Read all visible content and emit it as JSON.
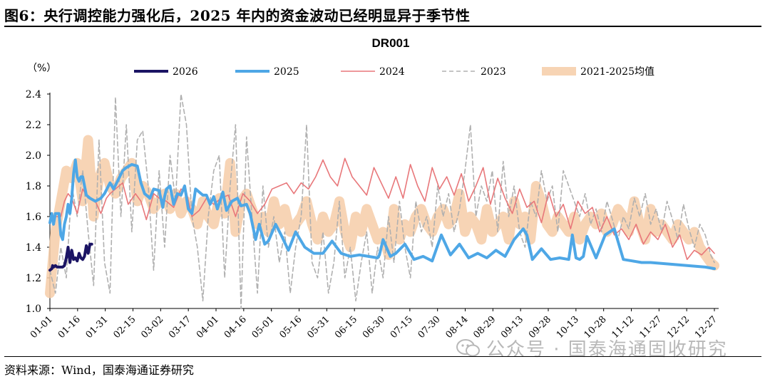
{
  "figure": {
    "title": "图6：央行调控能力强化后，2025 年内的资金波动已经明显异于季节性",
    "source": "资料来源：Wind，国泰海通证券研究",
    "watermark": "公众号 · 国泰海通固收研究"
  },
  "chart_data": {
    "type": "line",
    "title": "DR001",
    "ylabel": "（%）",
    "ylim": [
      1.0,
      2.4
    ],
    "yticks": [
      "1.0",
      "1.2",
      "1.4",
      "1.6",
      "1.8",
      "2.0",
      "2.2",
      "2.4"
    ],
    "x_categories": [
      "01-01",
      "01-16",
      "01-31",
      "02-15",
      "03-02",
      "03-17",
      "04-01",
      "04-16",
      "05-01",
      "05-16",
      "05-31",
      "06-15",
      "06-30",
      "07-15",
      "07-30",
      "08-14",
      "08-29",
      "09-13",
      "09-28",
      "10-13",
      "10-28",
      "11-12",
      "11-27",
      "12-12",
      "12-27"
    ],
    "legend_position": "top",
    "series": [
      {
        "name": "2026",
        "color": "#1b1464",
        "style": "solid-thick",
        "x": [
          0,
          1.1,
          1.5,
          2,
          3,
          4,
          5,
          7,
          8,
          9,
          10,
          11,
          12,
          13,
          14,
          15,
          16,
          17,
          18,
          19,
          20,
          21,
          22,
          23
        ],
        "values": [
          1.25,
          1.26,
          1.28,
          1.27,
          1.28,
          1.27,
          1.27,
          1.27,
          1.28,
          1.33,
          1.4,
          1.3,
          1.38,
          1.32,
          1.33,
          1.31,
          1.36,
          1.33,
          1.32,
          1.34,
          1.41,
          1.36,
          1.42,
          1.42
        ]
      },
      {
        "name": "2025",
        "color": "#4ea7e6",
        "style": "solid-thick",
        "x": [
          0,
          1,
          2,
          3,
          5,
          6,
          7,
          8,
          9,
          10,
          11,
          12,
          13,
          14,
          15,
          16,
          17,
          18,
          20,
          22,
          25,
          28,
          30,
          33,
          35,
          40,
          42,
          45,
          48,
          50,
          52,
          55,
          57,
          60,
          62,
          63,
          64,
          66,
          68,
          70,
          72,
          74,
          76,
          78,
          80,
          84,
          86,
          88,
          90,
          92,
          95,
          97,
          100,
          103,
          105,
          108,
          110,
          113,
          115,
          118,
          120,
          124,
          127,
          131,
          135,
          140,
          145,
          150,
          155,
          160,
          165,
          170,
          175,
          180,
          181,
          183,
          187,
          190,
          195,
          200,
          205,
          210,
          215,
          220,
          225,
          230,
          235,
          240,
          245,
          250,
          255,
          260,
          262,
          265,
          270,
          275,
          280,
          285,
          287,
          289,
          291,
          293,
          295,
          300,
          305,
          310,
          315,
          320,
          325,
          330,
          340,
          350,
          360,
          365
        ],
        "values": [
          1.56,
          1.62,
          1.55,
          1.62,
          1.62,
          1.48,
          1.45,
          1.55,
          1.6,
          1.68,
          1.62,
          1.72,
          1.88,
          1.97,
          1.86,
          1.83,
          1.86,
          1.86,
          1.74,
          1.72,
          1.7,
          1.72,
          1.75,
          1.82,
          1.78,
          1.9,
          1.92,
          1.94,
          1.93,
          1.82,
          1.75,
          1.72,
          1.78,
          1.77,
          1.66,
          1.73,
          1.78,
          1.8,
          1.68,
          1.75,
          1.74,
          1.8,
          1.65,
          1.62,
          1.78,
          1.74,
          1.74,
          1.68,
          1.73,
          1.65,
          1.76,
          1.64,
          1.7,
          1.72,
          1.67,
          1.68,
          1.62,
          1.45,
          1.55,
          1.42,
          1.44,
          1.55,
          1.48,
          1.38,
          1.5,
          1.4,
          1.36,
          1.36,
          1.44,
          1.36,
          1.34,
          1.35,
          1.34,
          1.33,
          1.35,
          1.45,
          1.34,
          1.36,
          1.42,
          1.32,
          1.34,
          1.31,
          1.48,
          1.35,
          1.42,
          1.33,
          1.36,
          1.33,
          1.38,
          1.34,
          1.45,
          1.52,
          1.48,
          1.32,
          1.39,
          1.32,
          1.33,
          1.32,
          1.48,
          1.33,
          1.32,
          1.34,
          1.47,
          1.33,
          1.48,
          1.52,
          1.32,
          1.31,
          1.3,
          1.3,
          1.29,
          1.28,
          1.27,
          1.26
        ]
      },
      {
        "name": "2024",
        "color": "#e8777a",
        "style": "solid",
        "x": [
          0,
          3,
          6,
          8,
          10,
          12,
          15,
          18,
          21,
          25,
          28,
          31,
          33,
          36,
          40,
          43,
          47,
          50,
          53,
          57,
          60,
          64,
          68,
          72,
          75,
          78,
          82,
          86,
          90,
          94,
          98,
          102,
          106,
          110,
          114,
          118,
          122,
          126,
          130,
          134,
          138,
          142,
          146,
          150,
          154,
          158,
          162,
          166,
          170,
          174,
          178,
          182,
          186,
          190,
          194,
          198,
          202,
          206,
          210,
          214,
          218,
          222,
          226,
          230,
          234,
          238,
          242,
          246,
          250,
          254,
          258,
          262,
          266,
          270,
          274,
          278,
          282,
          286,
          290,
          294,
          298,
          302,
          306,
          310,
          314,
          318,
          322,
          326,
          330,
          334,
          338,
          342,
          346,
          350,
          354,
          358,
          362,
          365
        ],
        "values": [
          1.58,
          1.6,
          1.6,
          1.7,
          1.75,
          1.72,
          1.62,
          1.78,
          1.72,
          1.7,
          1.62,
          1.72,
          1.75,
          1.78,
          1.82,
          1.68,
          1.75,
          1.7,
          1.58,
          1.75,
          1.72,
          1.7,
          1.66,
          1.78,
          1.76,
          1.6,
          1.64,
          1.72,
          1.68,
          1.72,
          1.74,
          1.6,
          1.75,
          1.7,
          1.62,
          1.68,
          1.78,
          1.8,
          1.82,
          1.75,
          1.82,
          1.78,
          1.86,
          1.97,
          1.86,
          1.8,
          1.98,
          1.86,
          1.8,
          1.74,
          1.92,
          1.82,
          1.72,
          1.86,
          1.72,
          1.94,
          1.8,
          1.7,
          1.92,
          1.78,
          1.86,
          1.74,
          1.88,
          1.7,
          1.8,
          1.92,
          1.68,
          1.85,
          1.72,
          1.62,
          1.78,
          1.66,
          1.7,
          1.56,
          1.76,
          1.6,
          1.68,
          1.52,
          1.7,
          1.62,
          1.66,
          1.5,
          1.6,
          1.48,
          1.52,
          1.45,
          1.55,
          1.42,
          1.5,
          1.45,
          1.55,
          1.4,
          1.48,
          1.32,
          1.38,
          1.35,
          1.4,
          1.36
        ]
      },
      {
        "name": "2023",
        "color": "#b0b0b0",
        "style": "dashed",
        "x": [
          0,
          3,
          6,
          9,
          12,
          15,
          18,
          21,
          24,
          27,
          30,
          33,
          36,
          39,
          42,
          45,
          48,
          51,
          54,
          57,
          60,
          63,
          66,
          69,
          72,
          75,
          78,
          81,
          84,
          87,
          90,
          93,
          96,
          99,
          102,
          105,
          108,
          111,
          114,
          117,
          120,
          123,
          126,
          129,
          132,
          135,
          138,
          141,
          144,
          147,
          150,
          153,
          156,
          159,
          162,
          165,
          168,
          171,
          174,
          177,
          180,
          183,
          186,
          189,
          192,
          195,
          198,
          201,
          204,
          207,
          210,
          213,
          216,
          219,
          222,
          225,
          228,
          231,
          234,
          237,
          240,
          243,
          246,
          249,
          252,
          255,
          258,
          261,
          264,
          267,
          270,
          273,
          276,
          279,
          282,
          285,
          288,
          291,
          294,
          297,
          300,
          303,
          306,
          309,
          312,
          315,
          318,
          321,
          324,
          327,
          330,
          333,
          336,
          339,
          342,
          345,
          348,
          351,
          354,
          357,
          360,
          363,
          365
        ],
        "values": [
          1.25,
          1.1,
          1.4,
          1.2,
          1.8,
          1.6,
          1.9,
          1.5,
          1.15,
          2.1,
          1.3,
          1.1,
          2.38,
          1.6,
          2.2,
          1.5,
          2.1,
          2.16,
          1.8,
          1.25,
          1.9,
          1.4,
          2.0,
          1.7,
          2.4,
          2.2,
          1.6,
          1.4,
          1.05,
          1.6,
          1.9,
          2.0,
          1.2,
          1.8,
          2.2,
          1.0,
          2.12,
          1.6,
          1.1,
          1.8,
          1.4,
          1.6,
          1.3,
          1.5,
          1.1,
          1.4,
          1.6,
          2.2,
          1.3,
          1.2,
          1.5,
          1.1,
          1.3,
          1.7,
          1.2,
          1.4,
          1.05,
          1.3,
          1.5,
          1.1,
          1.4,
          1.2,
          1.6,
          1.3,
          1.7,
          1.4,
          1.2,
          1.7,
          1.5,
          1.6,
          1.4,
          1.8,
          1.6,
          1.75,
          1.5,
          1.65,
          1.9,
          2.2,
          1.6,
          1.8,
          1.7,
          1.9,
          1.5,
          1.96,
          1.6,
          1.8,
          1.5,
          1.4,
          1.7,
          1.6,
          1.9,
          1.7,
          1.8,
          1.5,
          1.9,
          1.8,
          1.7,
          1.6,
          1.75,
          1.55,
          1.65,
          1.5,
          1.7,
          1.58,
          1.45,
          1.6,
          1.52,
          1.72,
          1.6,
          1.75,
          1.55,
          1.65,
          1.5,
          1.7,
          1.58,
          1.45,
          1.68,
          1.52,
          1.4,
          1.55,
          1.48,
          1.35,
          1.3
        ]
      },
      {
        "name": "2021-2025均值",
        "color": "#f6cda8",
        "style": "band",
        "x": [
          0,
          3,
          6,
          9,
          12,
          15,
          18,
          21,
          24,
          27,
          30,
          33,
          36,
          39,
          42,
          45,
          48,
          51,
          54,
          57,
          60,
          63,
          66,
          69,
          72,
          75,
          78,
          81,
          84,
          87,
          90,
          93,
          96,
          99,
          102,
          105,
          108,
          111,
          114,
          117,
          120,
          123,
          126,
          129,
          132,
          135,
          138,
          141,
          144,
          147,
          150,
          153,
          156,
          159,
          162,
          165,
          168,
          171,
          174,
          177,
          180,
          183,
          186,
          189,
          192,
          195,
          198,
          201,
          204,
          207,
          210,
          213,
          216,
          219,
          222,
          225,
          228,
          231,
          234,
          237,
          240,
          243,
          246,
          249,
          252,
          255,
          258,
          261,
          264,
          267,
          270,
          273,
          276,
          279,
          282,
          285,
          288,
          291,
          294,
          297,
          300,
          303,
          306,
          309,
          312,
          315,
          318,
          321,
          324,
          327,
          330,
          333,
          336,
          339,
          342,
          345,
          348,
          351,
          354,
          357,
          360,
          363,
          365
        ],
        "values": [
          1.1,
          1.5,
          1.7,
          1.9,
          1.85,
          1.95,
          1.7,
          2.1,
          1.6,
          1.85,
          1.95,
          1.8,
          1.75,
          1.85,
          1.9,
          1.95,
          1.7,
          1.8,
          1.75,
          1.65,
          1.7,
          1.75,
          1.65,
          1.75,
          1.62,
          1.7,
          1.65,
          1.55,
          1.7,
          1.6,
          1.55,
          1.72,
          1.62,
          1.95,
          1.5,
          1.7,
          1.75,
          1.65,
          1.55,
          1.6,
          1.5,
          1.7,
          1.55,
          1.65,
          1.5,
          1.55,
          1.6,
          1.7,
          1.55,
          1.45,
          1.6,
          1.5,
          1.55,
          1.7,
          1.5,
          1.4,
          1.6,
          1.5,
          1.65,
          1.55,
          1.45,
          1.5,
          1.35,
          1.65,
          1.45,
          1.55,
          1.5,
          1.6,
          1.65,
          1.55,
          1.5,
          1.6,
          1.65,
          1.55,
          1.6,
          1.75,
          1.5,
          1.6,
          1.55,
          1.45,
          1.65,
          1.5,
          1.55,
          1.6,
          1.45,
          1.7,
          1.55,
          1.6,
          1.45,
          1.8,
          1.7,
          1.55,
          1.5,
          1.6,
          1.55,
          1.5,
          1.6,
          1.45,
          1.55,
          1.6,
          1.55,
          1.62,
          1.5,
          1.55,
          1.65,
          1.6,
          1.5,
          1.7,
          1.55,
          1.45,
          1.65,
          1.5,
          1.55,
          1.5,
          1.45,
          1.55,
          1.5,
          1.45,
          1.5,
          1.4,
          1.35,
          1.3,
          1.28
        ]
      }
    ]
  }
}
